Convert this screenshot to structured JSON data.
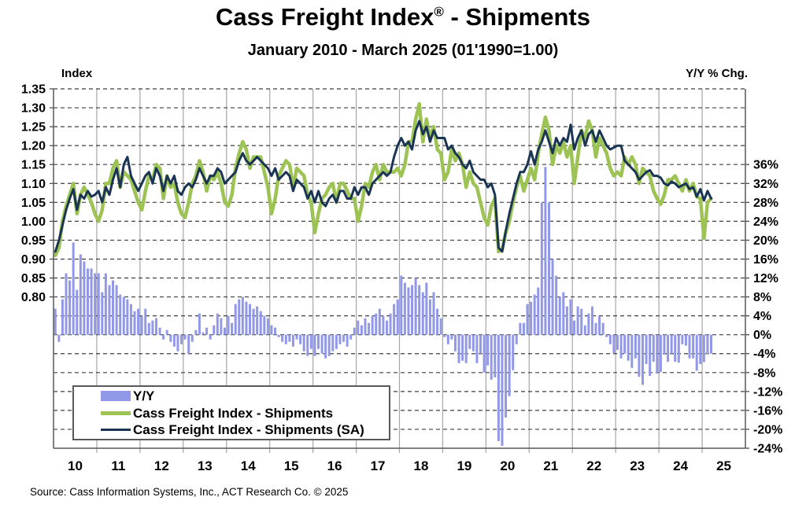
{
  "title": {
    "text": "Cass Freight Index",
    "registered": "®",
    "suffix": " - Shipments"
  },
  "subtitle": "January 2010 - March 2025 (01'1990=1.00)",
  "axis_labels": {
    "left": "Index",
    "right": "Y/Y % Chg."
  },
  "source": "Source: Cass Information Systems, Inc., ACT Research Co. © 2025",
  "legend": [
    {
      "label": "Y/Y",
      "swatch": "bar"
    },
    {
      "label": "Cass Freight Index - Shipments",
      "swatch": "thick-line"
    },
    {
      "label": "Cass Freight Index - Shipments (SA)",
      "swatch": "thin-line"
    }
  ],
  "colors": {
    "bar": "#9298e8",
    "line_nsa": "#9cc353",
    "line_sa": "#1a3553",
    "grid_vertical": "#a6a6a6",
    "grid_dash": "#3f3f3f",
    "frame": "#595959",
    "text": "#000000",
    "background": "#ffffff"
  },
  "chart_data": {
    "type": "combo",
    "period_start": "2010-01",
    "period_end": "2025-03",
    "x_tick_labels": [
      "10",
      "11",
      "12",
      "13",
      "14",
      "15",
      "16",
      "17",
      "18",
      "19",
      "20",
      "21",
      "22",
      "23",
      "24",
      "25"
    ],
    "left_axis": {
      "title": "Index",
      "min_labeled": 0.8,
      "max_labeled": 1.35,
      "step": 0.05,
      "ticks": [
        1.35,
        1.3,
        1.25,
        1.2,
        1.15,
        1.1,
        1.05,
        1.0,
        0.95,
        0.9,
        0.85,
        0.8
      ]
    },
    "right_axis": {
      "title": "Y/Y % Chg.",
      "min": -24,
      "max": 36,
      "step": 4,
      "ticks": [
        36,
        32,
        28,
        24,
        20,
        16,
        12,
        8,
        4,
        0,
        -4,
        -8,
        -12,
        -16,
        -20,
        -24
      ]
    },
    "grid": {
      "horizontal": "dashed",
      "vertical": "yearly-solid"
    },
    "legend_position": "bottom-left-inside",
    "series": [
      {
        "name": "Y/Y",
        "type": "bar",
        "axis": "right",
        "unit": "%",
        "values_by_year": [
          [
            5.5,
            -1.5,
            7.5,
            13,
            11.5,
            19.5,
            9.5,
            17,
            15.5,
            14,
            14,
            13
          ],
          [
            13,
            9,
            13,
            10.5,
            11.5,
            10.5,
            8.5,
            8,
            7.5,
            6.5,
            5,
            5.5
          ],
          [
            4,
            5.5,
            2.5,
            3,
            3.5,
            1.5,
            -1,
            1,
            -1.5,
            -2.5,
            -3.5,
            -2
          ],
          [
            -1,
            -4,
            -1.5,
            1,
            4.5,
            0.5,
            1.5,
            -1,
            2,
            4.5,
            3.5,
            1.5
          ],
          [
            4,
            2.5,
            6.5,
            7.5,
            8,
            7,
            6.5,
            5.5,
            6,
            5,
            4,
            3.5
          ],
          [
            2,
            1.5,
            -0.5,
            -1.5,
            -2,
            -1.5,
            -2.5,
            -1,
            -2,
            -3.5,
            -4.5,
            -3
          ],
          [
            -4.5,
            -3,
            -4,
            -5,
            -4.5,
            -3.5,
            -3,
            -2,
            -1.5,
            -2.5,
            -1,
            1.5
          ],
          [
            3,
            2,
            3.5,
            2.5,
            4,
            4.5,
            5.5,
            4,
            3,
            4.5,
            6.5,
            7.5
          ],
          [
            12.5,
            11,
            10,
            10.5,
            12,
            10.5,
            9,
            11,
            7.5,
            9,
            5.5,
            3.5
          ],
          [
            -0.5,
            -2,
            -1,
            -3.5,
            -6,
            -5.5,
            -6,
            -3,
            -3.5,
            -6,
            -4,
            -8
          ],
          [
            -6.5,
            -9.5,
            -9,
            -22.5,
            -23.5,
            -17.5,
            -13,
            -7.5,
            -2,
            2.5,
            2.5,
            6.5
          ],
          [
            7,
            8.5,
            10,
            28,
            35.5,
            28,
            16,
            12.5,
            8,
            9,
            6,
            7.5
          ],
          [
            3,
            6,
            5.5,
            2,
            4.5,
            6,
            2.5,
            4,
            2.5,
            -0.5,
            -2,
            -3.9
          ],
          [
            -3.2,
            -5,
            -4,
            -5.5,
            -7,
            -5,
            -8.9,
            -10.6,
            -6.2,
            -8.7,
            -5.7,
            -8.2
          ],
          [
            -7.9,
            -4.2,
            -5.7,
            -4,
            -5.7,
            -5.9,
            -2,
            -2.3,
            -5,
            -5,
            -7.6,
            -6.2
          ],
          [
            -5.8,
            -4.1,
            -4
          ]
        ]
      },
      {
        "name": "Cass Freight Index - Shipments",
        "type": "line",
        "axis": "left",
        "values_by_year": [
          [
            0.91,
            0.93,
            1.0,
            1.04,
            1.07,
            1.1,
            1.02,
            1.07,
            1.09,
            1.07,
            1.05,
            1.02
          ],
          [
            1.0,
            1.03,
            1.1,
            1.1,
            1.14,
            1.16,
            1.09,
            1.13,
            1.12,
            1.11,
            1.08,
            1.05
          ],
          [
            1.03,
            1.08,
            1.12,
            1.11,
            1.15,
            1.14,
            1.06,
            1.12,
            1.09,
            1.1,
            1.05,
            1.02
          ],
          [
            1.01,
            1.05,
            1.1,
            1.12,
            1.16,
            1.13,
            1.08,
            1.12,
            1.11,
            1.13,
            1.1,
            1.05
          ],
          [
            1.04,
            1.07,
            1.14,
            1.18,
            1.21,
            1.19,
            1.14,
            1.17,
            1.17,
            1.17,
            1.13,
            1.09
          ],
          [
            1.02,
            1.06,
            1.12,
            1.14,
            1.16,
            1.15,
            1.09,
            1.14,
            1.13,
            1.12,
            1.07,
            1.05
          ],
          [
            0.97,
            1.02,
            1.06,
            1.07,
            1.09,
            1.1,
            1.05,
            1.1,
            1.1,
            1.08,
            1.06,
            1.06
          ],
          [
            1.0,
            1.04,
            1.1,
            1.09,
            1.13,
            1.15,
            1.11,
            1.15,
            1.13,
            1.13,
            1.13,
            1.14
          ],
          [
            1.12,
            1.15,
            1.21,
            1.21,
            1.27,
            1.31,
            1.21,
            1.27,
            1.22,
            1.25,
            1.19,
            1.18
          ],
          [
            1.11,
            1.13,
            1.19,
            1.16,
            1.18,
            1.15,
            1.09,
            1.13,
            1.1,
            1.09,
            1.05,
            1.01
          ],
          [
            0.99,
            1.04,
            1.06,
            0.92,
            0.925,
            0.97,
            1.0,
            1.05,
            1.09,
            1.12,
            1.08,
            1.11
          ],
          [
            1.14,
            1.11,
            1.18,
            1.23,
            1.275,
            1.24,
            1.15,
            1.2,
            1.18,
            1.21,
            1.17,
            1.2
          ],
          [
            1.1,
            1.17,
            1.24,
            1.22,
            1.265,
            1.24,
            1.17,
            1.22,
            1.2,
            1.18,
            1.14,
            1.12
          ],
          [
            1.13,
            1.12,
            1.17,
            1.15,
            1.17,
            1.15,
            1.1,
            1.14,
            1.13,
            1.12,
            1.08,
            1.06
          ],
          [
            1.045,
            1.07,
            1.11,
            1.11,
            1.12,
            1.1,
            1.08,
            1.11,
            1.08,
            1.1,
            1.065,
            1.06
          ],
          [
            0.955,
            1.05,
            1.06
          ]
        ]
      },
      {
        "name": "Cass Freight Index - Shipments (SA)",
        "type": "line",
        "axis": "left",
        "values_by_year": [
          [
            0.92,
            0.95,
            0.99,
            1.03,
            1.06,
            1.085,
            1.03,
            1.07,
            1.06,
            1.08,
            1.065,
            1.07
          ],
          [
            1.08,
            1.05,
            1.09,
            1.07,
            1.11,
            1.14,
            1.09,
            1.15,
            1.17,
            1.12,
            1.1,
            1.08
          ],
          [
            1.1,
            1.12,
            1.13,
            1.1,
            1.14,
            1.12,
            1.08,
            1.12,
            1.1,
            1.12,
            1.08,
            1.07
          ],
          [
            1.09,
            1.1,
            1.09,
            1.11,
            1.14,
            1.12,
            1.1,
            1.12,
            1.12,
            1.14,
            1.13,
            1.1
          ],
          [
            1.11,
            1.12,
            1.13,
            1.16,
            1.18,
            1.16,
            1.15,
            1.16,
            1.17,
            1.16,
            1.15,
            1.14
          ],
          [
            1.12,
            1.14,
            1.11,
            1.12,
            1.13,
            1.12,
            1.08,
            1.11,
            1.1,
            1.09,
            1.06,
            1.08
          ],
          [
            1.05,
            1.08,
            1.05,
            1.04,
            1.06,
            1.07,
            1.05,
            1.08,
            1.08,
            1.06,
            1.06,
            1.09
          ],
          [
            1.07,
            1.09,
            1.09,
            1.07,
            1.1,
            1.11,
            1.12,
            1.13,
            1.12,
            1.13,
            1.17,
            1.2
          ],
          [
            1.22,
            1.2,
            1.21,
            1.19,
            1.24,
            1.265,
            1.23,
            1.25,
            1.21,
            1.24,
            1.22,
            1.22
          ],
          [
            1.22,
            1.19,
            1.2,
            1.18,
            1.17,
            1.15,
            1.14,
            1.16,
            1.13,
            1.12,
            1.11,
            1.11
          ],
          [
            1.09,
            1.1,
            1.07,
            0.93,
            0.92,
            0.975,
            1.02,
            1.06,
            1.1,
            1.13,
            1.13,
            1.15
          ],
          [
            1.185,
            1.15,
            1.19,
            1.21,
            1.24,
            1.21,
            1.18,
            1.22,
            1.2,
            1.22,
            1.21,
            1.255
          ],
          [
            1.19,
            1.22,
            1.24,
            1.2,
            1.23,
            1.24,
            1.21,
            1.24,
            1.22,
            1.2,
            1.19,
            1.195
          ],
          [
            1.2,
            1.2,
            1.16,
            1.15,
            1.14,
            1.13,
            1.11,
            1.12,
            1.13,
            1.135,
            1.12,
            1.12
          ],
          [
            1.115,
            1.1,
            1.095,
            1.105,
            1.1,
            1.09,
            1.095,
            1.1,
            1.085,
            1.09,
            1.065,
            1.085
          ],
          [
            1.055,
            1.08,
            1.06
          ]
        ]
      }
    ]
  }
}
